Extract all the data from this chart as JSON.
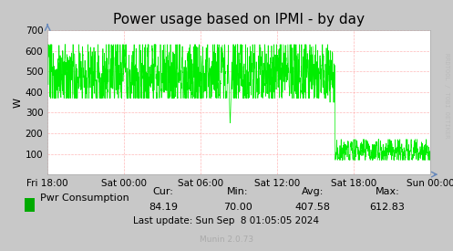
{
  "title": "Power usage based on IPMI - by day",
  "ylabel": "W",
  "ylim": [
    0,
    700
  ],
  "yticks": [
    100,
    200,
    300,
    400,
    500,
    600,
    700
  ],
  "xtick_labels": [
    "Fri 18:00",
    "Sat 00:00",
    "Sat 06:00",
    "Sat 12:00",
    "Sat 18:00",
    "Sun 00:00"
  ],
  "line_color": "#00EE00",
  "bg_color": "#C8C8C8",
  "plot_bg_color": "#FFFFFF",
  "grid_color": "#FF9999",
  "legend_label": "Pwr Consumption",
  "legend_color": "#00AA00",
  "cur": "84.19",
  "min": "70.00",
  "avg": "407.58",
  "max": "612.83",
  "footer": "Last update: Sun Sep  8 01:05:05 2024",
  "munin_version": "Munin 2.0.73",
  "watermark": "RRDTOOL / TOBI OETIKER",
  "title_fontsize": 11,
  "axis_fontsize": 8,
  "tick_fontsize": 7.5,
  "stats_fontsize": 8
}
